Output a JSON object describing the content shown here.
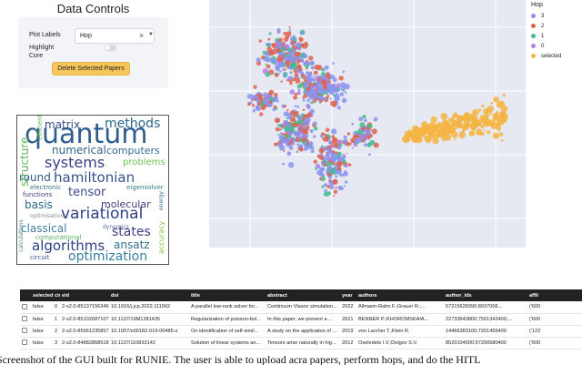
{
  "controls": {
    "title": "Data Controls",
    "plot_labels_label": "Plot Labels",
    "plot_labels_value": "Hop",
    "clear_glyph": "×",
    "caret_glyph": "▼",
    "highlight_core_label_1": "Highlight",
    "highlight_core_label_2": "Core",
    "highlight_core_on": false,
    "delete_button_label": "Delete Selected Papers",
    "accent_color": "#f7c65a"
  },
  "wordcloud": {
    "words": [
      {
        "text": "quantum",
        "color": "#2e5e8e"
      },
      {
        "text": "methods",
        "color": "#2a6a8a"
      },
      {
        "text": "matrix",
        "color": "#3a4c8a"
      },
      {
        "text": "numerical",
        "color": "#34618d"
      },
      {
        "text": "computers",
        "color": "#2f6b8e"
      },
      {
        "text": "systems",
        "color": "#3b3f86"
      },
      {
        "text": "problems",
        "color": "#6cc45a"
      },
      {
        "text": "round",
        "color": "#2f5d8c"
      },
      {
        "text": "hamiltonian",
        "color": "#3a4f8a"
      },
      {
        "text": "electronic",
        "color": "#3d6f8b"
      },
      {
        "text": "eigensolver",
        "color": "#2f7d8a"
      },
      {
        "text": "functions",
        "color": "#3a3e80"
      },
      {
        "text": "tensor",
        "color": "#3f4a8c"
      },
      {
        "text": "basis",
        "color": "#2b6c8c"
      },
      {
        "text": "molecular",
        "color": "#3f3c7d"
      },
      {
        "text": "optimisation",
        "color": "#8a8f99"
      },
      {
        "text": "variational",
        "color": "#2f3f85"
      },
      {
        "text": "classical",
        "color": "#3f7ea0"
      },
      {
        "text": "dynamics",
        "color": "#5a6aa0"
      },
      {
        "text": "states",
        "color": "#3a3f86"
      },
      {
        "text": "computational",
        "color": "#58b060"
      },
      {
        "text": "algorithms",
        "color": "#2f3f85"
      },
      {
        "text": "ansatz",
        "color": "#2f6f8e"
      },
      {
        "text": "circuit",
        "color": "#3f4f8a"
      },
      {
        "text": "optimization",
        "color": "#3a7ea0"
      },
      {
        "text": "structure",
        "color": "#5fb55a"
      },
      {
        "text": "efficient",
        "color": "#6ab04c"
      },
      {
        "text": "calculations",
        "color": "#3f7d8c"
      },
      {
        "text": "accuracy",
        "color": "#8cc24a"
      },
      {
        "text": "energy",
        "color": "#3a6f8a"
      }
    ]
  },
  "scatter": {
    "background": "#e6e9f2",
    "legend_title": "Hop",
    "groups": [
      {
        "label": "3",
        "color": "#8a93f0"
      },
      {
        "label": "2",
        "color": "#e0634f"
      },
      {
        "label": "1",
        "color": "#3fbf8f"
      },
      {
        "label": "0",
        "color": "#b080e0"
      },
      {
        "label": "selected",
        "color": "#f5b544"
      }
    ]
  },
  "table": {
    "headers": [
      "",
      "selected",
      "cid",
      "eid",
      "doi",
      "title",
      "abstract",
      "year",
      "authors",
      "author_ids",
      "affil"
    ],
    "rows": [
      [
        "false",
        "0",
        "2-s2.0-85137156346",
        "10.1016/j.jcp.2022.111562",
        "A parallel low-rank solver for...",
        "Continuum Vlasov simulation...",
        "2022",
        "Allmann-Rahn F.;Grauer R.;...",
        "57215628390;8937006...",
        "('600"
      ],
      [
        "false",
        "1",
        "2-s2.0-85102687107",
        "10.1137/19M1281435",
        "Regularization of poisson-bol...",
        "In this paper, we present a ...",
        "2021",
        "BENNER P.;KHOROMSKAIA...",
        "22733643800;7501342400;...",
        "('600"
      ],
      [
        "false",
        "2",
        "2-s2.0-85061235857",
        "10.1007/s00182-019-00485-z",
        "On identification of self-simil...",
        "A study on the application of ...",
        "2019",
        "von Larcher T.;Klein R.",
        "14466383100;7201455400",
        "('122"
      ],
      [
        "false",
        "3",
        "2-s2.0-84882858518",
        "10.1137/110833142",
        "Solution of linear systems an...",
        "Tensors arise naturally in hig...",
        "2012",
        "Oseledets I.V.;Dolgov S.V.",
        "8520104000;57200580400",
        "('600"
      ]
    ]
  },
  "caption": "Screenshot of the GUI built for RUNIE. The user is able to upload acra papers, perform hops, and do the HITL"
}
